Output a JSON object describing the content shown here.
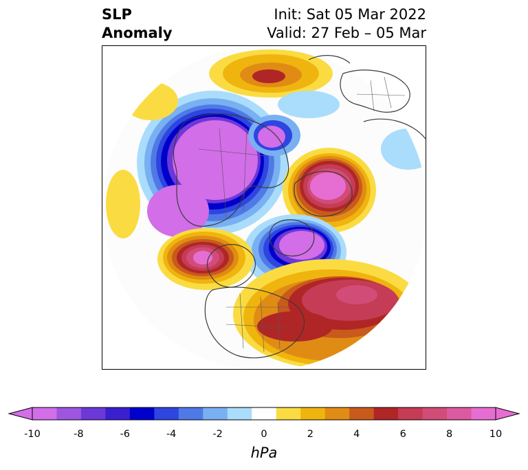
{
  "title": {
    "line1": "SLP",
    "line2": "Anomaly",
    "init": "Init: Sat 05 Mar 2022",
    "valid": "Valid: 27 Feb – 05 Mar"
  },
  "map": {
    "projection": "north polar stereographic",
    "features": [
      "coastlines",
      "country borders",
      "US state borders"
    ]
  },
  "colorbar": {
    "unit": "hPa",
    "tick_labels": [
      "-10",
      "-8",
      "-6",
      "-4",
      "-2",
      "0",
      "2",
      "4",
      "6",
      "8",
      "10"
    ],
    "levels": [
      -10,
      -9,
      -8,
      -7,
      -6,
      -5,
      -4,
      -3,
      -2,
      -1,
      1,
      2,
      3,
      4,
      5,
      6,
      7,
      8,
      9,
      10
    ],
    "colors": [
      "#d26ee8",
      "#9e55e0",
      "#6d38d8",
      "#3a1fcf",
      "#0000cc",
      "#2e45e0",
      "#4f7ae6",
      "#78b0f2",
      "#aadcfc",
      "#ffffff",
      "#fadc42",
      "#f0b40e",
      "#e08c14",
      "#c85a1c",
      "#b02626",
      "#c43c55",
      "#d24c78",
      "#dc5aa0",
      "#e66ed2"
    ],
    "extend": "both"
  },
  "anomaly_centers": [
    {
      "region": "Siberia / Arctic (upper-left)",
      "sign": "negative",
      "min_hpa": -10
    },
    {
      "region": "Greenland / Baffin",
      "sign": "negative",
      "min_hpa": -10
    },
    {
      "region": "Scandinavia / Barents",
      "sign": "positive",
      "max_hpa": 10
    },
    {
      "region": "Gulf of Alaska",
      "sign": "positive",
      "max_hpa": 10
    },
    {
      "region": "North Atlantic",
      "sign": "positive",
      "max_hpa": 9
    },
    {
      "region": "Eastern United States",
      "sign": "positive",
      "max_hpa": 6
    },
    {
      "region": "Western Siberia",
      "sign": "positive",
      "max_hpa": 5
    },
    {
      "region": "Eastern Europe",
      "sign": "negative",
      "min_hpa": -2
    }
  ]
}
